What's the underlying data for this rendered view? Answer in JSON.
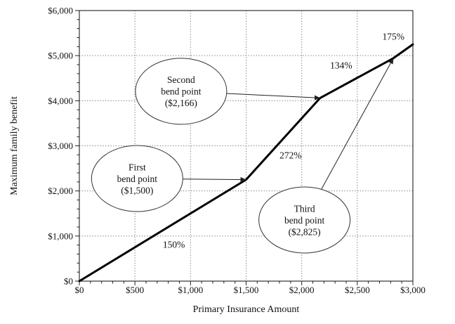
{
  "figure": {
    "background": "#ffffff",
    "ink_color": "#000000",
    "grid_color": "#777777"
  },
  "chart_data": {
    "type": "line",
    "title": "",
    "xlabel": "Primary Insurance Amount",
    "ylabel": "Maximum family benefit",
    "xlim": [
      0,
      3000
    ],
    "ylim": [
      0,
      6000
    ],
    "x_major_step": 500,
    "x_minor_step": 100,
    "y_major_step": 1000,
    "y_minor_step": 200,
    "grid": "dotted major gridlines, both directions",
    "legend_position": "none",
    "x_tick_labels": [
      "$0",
      "$500",
      "$1,000",
      "$1,500",
      "$2,000",
      "$2,500",
      "$3,000"
    ],
    "y_tick_labels": [
      "$0",
      "$1,000",
      "$2,000",
      "$3,000",
      "$4,000",
      "$5,000",
      "$6,000"
    ],
    "series": [
      {
        "name": "Maximum family benefit",
        "color": "#000000",
        "x": [
          0,
          1500,
          2166,
          2825,
          3000
        ],
        "y": [
          0,
          2250,
          4061,
          4944,
          5250
        ]
      }
    ],
    "segment_labels": [
      {
        "text": "150%",
        "x": 850,
        "y": 810
      },
      {
        "text": "272%",
        "x": 1900,
        "y": 2790
      },
      {
        "text": "134%",
        "x": 2355,
        "y": 4785
      },
      {
        "text": "175%",
        "x": 2825,
        "y": 5425
      }
    ],
    "callouts": [
      {
        "id": "first-bend-point",
        "lines": [
          "First",
          "bend point",
          "($1,500)"
        ],
        "center_x": 520,
        "center_y": 2275,
        "target_x": 1500,
        "target_y": 2250
      },
      {
        "id": "second-bend-point",
        "lines": [
          "Second",
          "bend point",
          "($2,166)"
        ],
        "center_x": 915,
        "center_y": 4210,
        "target_x": 2166,
        "target_y": 4061
      },
      {
        "id": "third-bend-point",
        "lines": [
          "Third",
          "bend point",
          "($2,825)"
        ],
        "center_x": 2025,
        "center_y": 1355,
        "target_x": 2825,
        "target_y": 4944
      }
    ]
  }
}
